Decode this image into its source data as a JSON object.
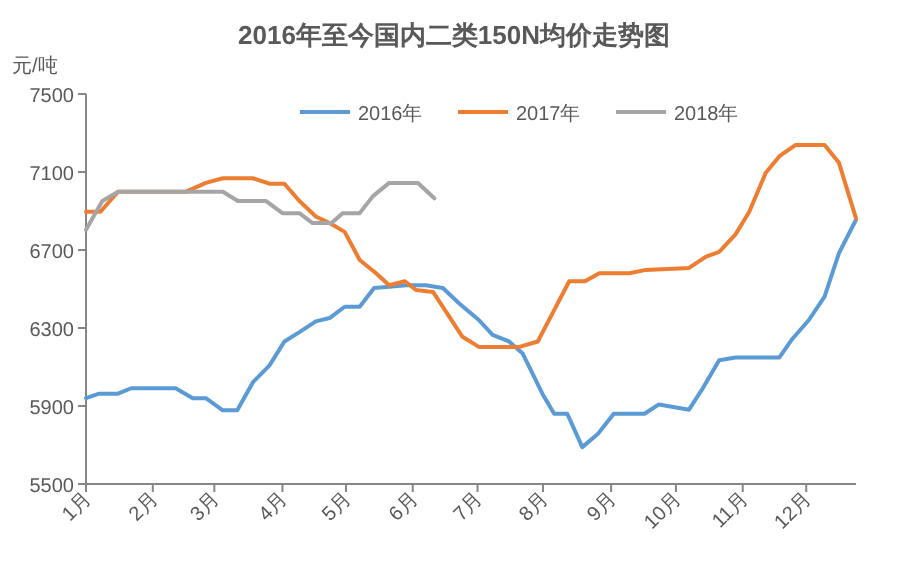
{
  "chart_data": {
    "type": "line",
    "title": "2016年至今国内二类150N均价走势图",
    "ylabel": "元/吨",
    "legend": "top right",
    "xlim": [
      1,
      12.76
    ],
    "ylim": [
      5500,
      7500
    ],
    "yticks": [
      5500,
      5900,
      6300,
      6700,
      7100,
      7500
    ],
    "xticks": [
      {
        "value": 1,
        "label": "1月"
      },
      {
        "value": 2.02,
        "label": "2月"
      },
      {
        "value": 2.96,
        "label": "3月"
      },
      {
        "value": 4,
        "label": "4月"
      },
      {
        "value": 4.97,
        "label": "5月"
      },
      {
        "value": 5.99,
        "label": "6月"
      },
      {
        "value": 6.98,
        "label": "7月"
      },
      {
        "value": 7.98,
        "label": "8月"
      },
      {
        "value": 9.02,
        "label": "9月"
      },
      {
        "value": 10.01,
        "label": "10月"
      },
      {
        "value": 11.03,
        "label": "11月"
      },
      {
        "value": 12,
        "label": "12月"
      }
    ],
    "series": [
      {
        "name": "2016年",
        "color": "#5b9bd5",
        "x": [
          1,
          1.2,
          1.49,
          1.69,
          2.37,
          2.63,
          2.83,
          3.09,
          3.31,
          3.55,
          3.8,
          4.03,
          4.26,
          4.51,
          4.72,
          4.95,
          5.18,
          5.4,
          5.63,
          5.89,
          6.19,
          6.45,
          6.7,
          7.0,
          7.21,
          7.46,
          7.67,
          7.97,
          8.15,
          8.35,
          8.58,
          8.82,
          9.06,
          9.53,
          9.75,
          10.21,
          10.42,
          10.67,
          10.92,
          11.59,
          11.79,
          12.04,
          12.28,
          12.5,
          12.76
        ],
        "values": [
          5940,
          5963,
          5963,
          5991,
          5991,
          5940,
          5940,
          5878,
          5878,
          6022,
          6107,
          6231,
          6279,
          6334,
          6351,
          6409,
          6409,
          6505,
          6512,
          6519,
          6519,
          6505,
          6426,
          6341,
          6265,
          6231,
          6169,
          5963,
          5860,
          5860,
          5689,
          5758,
          5860,
          5860,
          5908,
          5881,
          5991,
          6135,
          6149,
          6149,
          6245,
          6341,
          6461,
          6684,
          6855
        ]
      },
      {
        "name": "2017年",
        "color": "#ed7d31",
        "x": [
          1,
          1.22,
          1.49,
          2.53,
          2.83,
          3.09,
          3.55,
          3.8,
          4.03,
          4.26,
          4.51,
          4.72,
          4.95,
          5.18,
          5.43,
          5.63,
          5.87,
          6.04,
          6.3,
          6.75,
          7.0,
          7.62,
          7.9,
          8.15,
          8.38,
          8.62,
          8.84,
          9.3,
          9.55,
          10.21,
          10.47,
          10.67,
          10.92,
          11.13,
          11.38,
          11.59,
          11.84,
          12.28,
          12.5,
          12.76
        ],
        "values": [
          6896,
          6896,
          6999,
          6999,
          7044,
          7068,
          7068,
          7040,
          7040,
          6951,
          6872,
          6838,
          6793,
          6649,
          6581,
          6519,
          6540,
          6495,
          6485,
          6255,
          6203,
          6203,
          6231,
          6392,
          6540,
          6540,
          6581,
          6581,
          6598,
          6608,
          6666,
          6690,
          6780,
          6896,
          7095,
          7181,
          7239,
          7239,
          7147,
          6862
        ]
      },
      {
        "name": "2018年",
        "color": "#a5a5a5",
        "x": [
          1,
          1.25,
          1.49,
          3.09,
          3.32,
          3.75,
          4.0,
          4.26,
          4.46,
          4.75,
          4.92,
          5.18,
          5.38,
          5.63,
          6.07,
          6.32
        ],
        "values": [
          6804,
          6951,
          6999,
          6999,
          6951,
          6951,
          6889,
          6889,
          6838,
          6838,
          6889,
          6889,
          6975,
          7044,
          7044,
          6965
        ]
      }
    ]
  }
}
